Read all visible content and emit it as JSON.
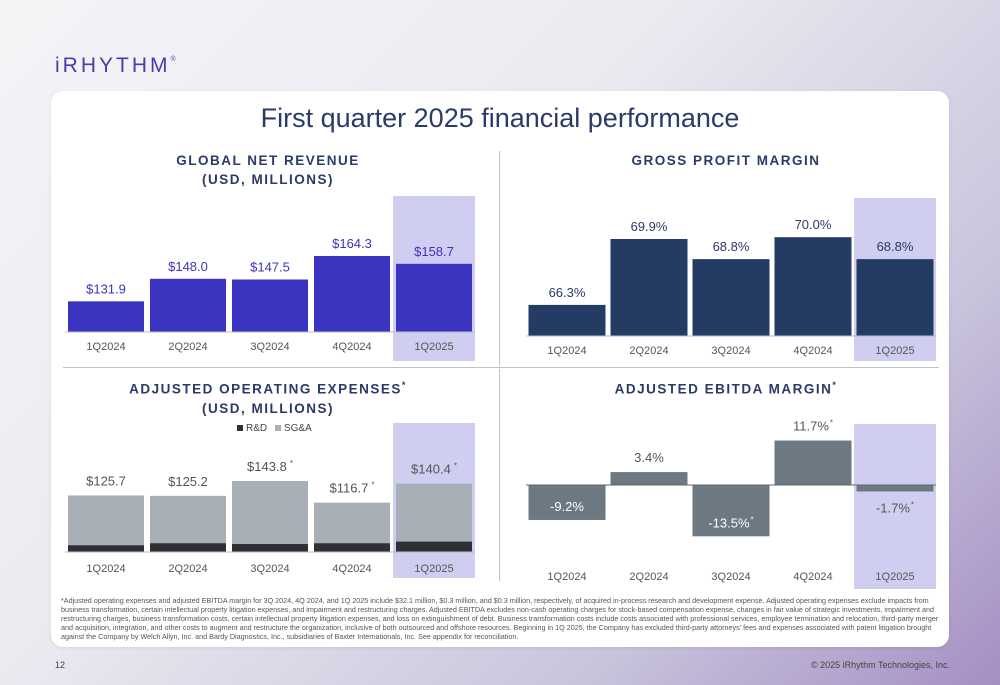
{
  "logo": "iRHYTHM",
  "logo_mark": "®",
  "title": "First quarter 2025 financial performance",
  "page_number": "12",
  "copyright": "© 2025 iRhythm Technologies, Inc.",
  "footnote": "*Adjusted operating expenses and adjusted EBITDA margin for 3Q 2024, 4Q 2024, and 1Q 2025 include $32.1 million, $0.3 million, and $0.3 million, respectively, of acquired in-process research and development expense. Adjusted operating expenses exclude impacts from business transformation, certain intellectual property litigation expenses, and impairment and restructuring charges. Adjusted EBITDA excludes non-cash operating charges for stock-based compensation expense, changes in fair value of strategic investments, impairment and restructuring charges, business transformation costs, certain intellectual property litigation expenses, and loss on extinguishment of debt. Business transformation costs include costs associated with professional services, employee termination and relocation, third-party merger and acquisition, integration, and other costs to augment and restructure the organization, inclusive of both outsourced and offshore resources. Beginning in 1Q 2025, the Company has excluded third-party attorneys' fees and expenses associated with patent litigation brought against the Company by Welch Allyn, Inc. and Bardy Diagnostics, Inc., subsidiaries of Baxter Internationals, Inc. See appendix for reconciliation.",
  "colors": {
    "revenue_bar": "#3a34c0",
    "margin_bar": "#243b64",
    "sga": "#a9afb6",
    "rd": "#2d3136",
    "ebitda": "#6c7983",
    "highlight": "#cfcdf0",
    "label_blue": "#3a34c0",
    "label_dark": "#2b3a67"
  },
  "chart_data": [
    {
      "type": "bar",
      "title_line1": "GLOBAL NET REVENUE",
      "title_line2": "(USD, MILLIONS)",
      "categories": [
        "1Q2024",
        "2Q2024",
        "3Q2024",
        "4Q2024",
        "1Q2025"
      ],
      "values": [
        131.9,
        148.0,
        147.5,
        164.3,
        158.7
      ],
      "labels": [
        "$131.9",
        "$148.0",
        "$147.5",
        "$164.3",
        "$158.7"
      ],
      "highlight_category": "1Q2025"
    },
    {
      "type": "bar",
      "title_line1": "GROSS PROFIT MARGIN",
      "categories": [
        "1Q2024",
        "2Q2024",
        "3Q2024",
        "4Q2024",
        "1Q2025"
      ],
      "values": [
        66.3,
        69.9,
        68.8,
        70.0,
        68.8
      ],
      "labels": [
        "66.3%",
        "69.9%",
        "68.8%",
        "70.0%",
        "68.8%"
      ],
      "highlight_category": "1Q2025"
    },
    {
      "type": "bar",
      "stacked": true,
      "title_line1": "ADJUSTED OPERATING EXPENSES",
      "title_star": "*",
      "title_line2": "(USD, MILLIONS)",
      "categories": [
        "1Q2024",
        "2Q2024",
        "3Q2024",
        "4Q2024",
        "1Q2025"
      ],
      "series": [
        {
          "name": "R&D",
          "values": [
            8.5,
            11.0,
            10.0,
            11.0,
            13.0
          ]
        },
        {
          "name": "SG&A",
          "values": [
            117.2,
            114.2,
            133.8,
            105.7,
            127.4
          ]
        }
      ],
      "totals": [
        125.7,
        125.2,
        143.8,
        116.7,
        140.4
      ],
      "labels": [
        "$125.7",
        "$125.2",
        "$143.8",
        "$116.7",
        "$140.4"
      ],
      "label_stars": [
        "",
        "",
        "*",
        "*",
        "*"
      ],
      "legend": "top-center",
      "highlight_category": "1Q2025"
    },
    {
      "type": "bar",
      "title_line1": "ADJUSTED EBITDA MARGIN",
      "title_star": "*",
      "categories": [
        "1Q2024",
        "2Q2024",
        "3Q2024",
        "4Q2024",
        "1Q2025"
      ],
      "values": [
        -9.2,
        3.4,
        -13.5,
        11.7,
        -1.7
      ],
      "labels": [
        "-9.2%",
        "3.4%",
        "-13.5%",
        "11.7%",
        "-1.7%"
      ],
      "label_stars": [
        "",
        "",
        "*",
        "*",
        "*"
      ],
      "highlight_category": "1Q2025"
    }
  ]
}
